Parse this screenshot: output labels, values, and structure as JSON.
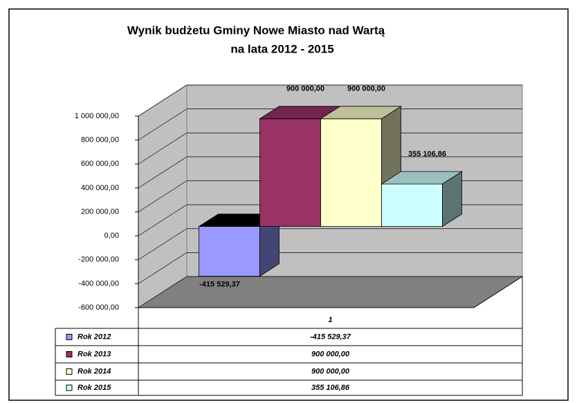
{
  "chart_data": {
    "type": "bar3d",
    "title": [
      "Wynik budżetu Gminy Nowe Miasto nad Wartą",
      "na lata 2012 - 2015"
    ],
    "categories": [
      "1"
    ],
    "series": [
      {
        "name": "Rok 2012",
        "color": "#9999ff",
        "values": [
          -415529.37
        ],
        "value_labels": [
          "-415 529,37"
        ]
      },
      {
        "name": "Rok 2013",
        "color": "#993366",
        "values": [
          900000
        ],
        "value_labels": [
          "900 000,00"
        ]
      },
      {
        "name": "Rok 2014",
        "color": "#ffffcc",
        "values": [
          900000
        ],
        "value_labels": [
          "900 000,00"
        ]
      },
      {
        "name": "Rok 2015",
        "color": "#ccffff",
        "values": [
          355106.86
        ],
        "value_labels": [
          "355 106,86"
        ]
      }
    ],
    "ylim": [
      -600000,
      1000000
    ],
    "yticks": [
      {
        "value": -600000,
        "label": "-600 000,00"
      },
      {
        "value": -400000,
        "label": "-400 000,00"
      },
      {
        "value": -200000,
        "label": "-200 000,00"
      },
      {
        "value": 0,
        "label": "0,00"
      },
      {
        "value": 200000,
        "label": "200 000,00"
      },
      {
        "value": 400000,
        "label": "400 000,00"
      },
      {
        "value": 600000,
        "label": "600 000,00"
      },
      {
        "value": 800000,
        "label": "800 000,00"
      },
      {
        "value": 1000000,
        "label": "1 000 000,00"
      }
    ],
    "grid": true,
    "data_table": true
  }
}
